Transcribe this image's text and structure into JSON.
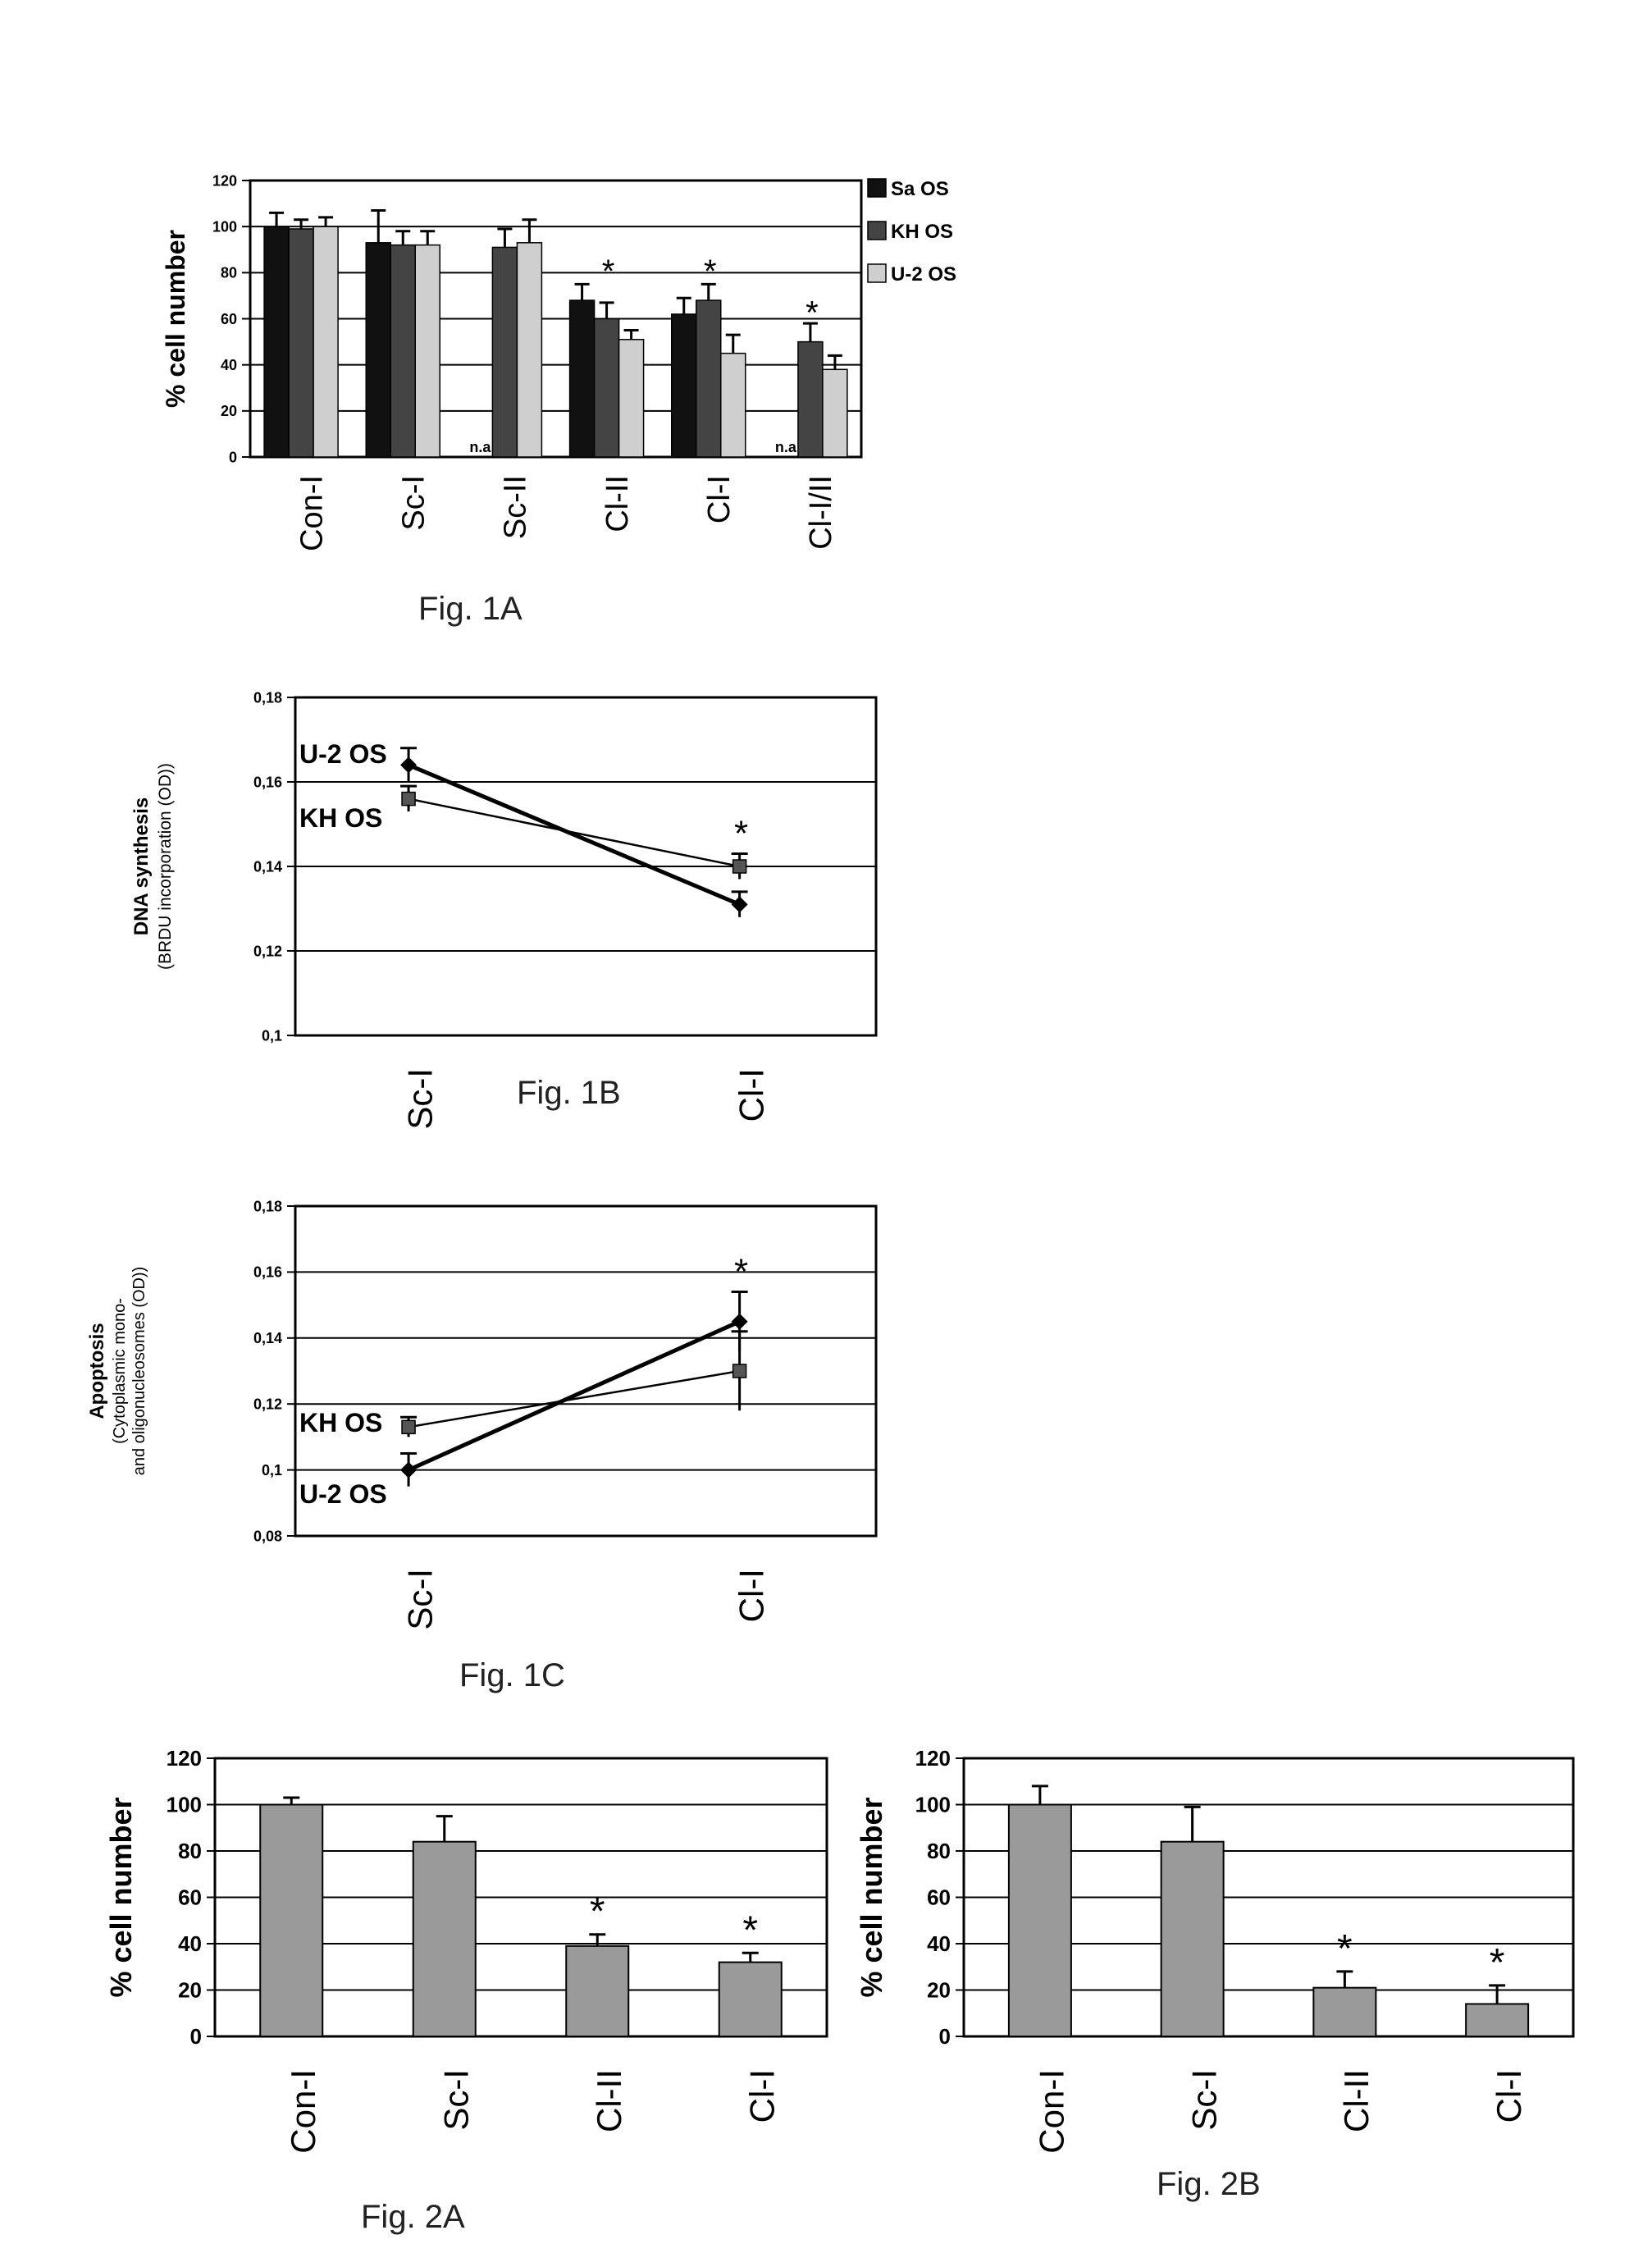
{
  "figures": {
    "fig1a": "Fig. 1A",
    "fig1b": "Fig. 1B",
    "fig1c": "Fig. 1C",
    "fig2a": "Fig. 2A",
    "fig2b": "Fig. 2B"
  },
  "colors": {
    "bar_dark": "#111111",
    "bar_mid": "#444444",
    "bar_light": "#cfcfcf",
    "bar_gray": "#9a9a9a",
    "grid": "#000000"
  },
  "chart_data": [
    {
      "id": "fig1a",
      "type": "bar",
      "categories": [
        "Con-I",
        "Sc-I",
        "Sc-II",
        "Cl-II",
        "Cl-I",
        "Cl-I/II"
      ],
      "series": [
        {
          "name": "Sa OS",
          "values": [
            100,
            93,
            null,
            68,
            62,
            null
          ],
          "errors": [
            6,
            14,
            null,
            7,
            7,
            null
          ]
        },
        {
          "name": "KH OS",
          "values": [
            99,
            92,
            91,
            60,
            68,
            50
          ],
          "errors": [
            4,
            6,
            8,
            7,
            7,
            8
          ]
        },
        {
          "name": "U-2 OS",
          "values": [
            100,
            92,
            93,
            51,
            45,
            38
          ],
          "errors": [
            4,
            6,
            10,
            4,
            8,
            6
          ]
        }
      ],
      "na_label": "n.a",
      "ylabel": "% cell number",
      "ylim": [
        0,
        120
      ],
      "yticks": [
        "0",
        "20",
        "40",
        "60",
        "80",
        "100",
        "120"
      ],
      "asterisks": [
        "",
        "",
        "",
        "*",
        "*",
        "*"
      ],
      "legend_position": "right"
    },
    {
      "id": "fig1b",
      "type": "line",
      "categories": [
        "Sc-I",
        "Cl-I"
      ],
      "series": [
        {
          "name": "U-2 OS",
          "values": [
            0.164,
            0.131
          ],
          "errors": [
            0.004,
            0.003
          ]
        },
        {
          "name": "KH OS",
          "values": [
            0.156,
            0.14
          ],
          "errors": [
            0.003,
            0.003
          ]
        }
      ],
      "ylabel": "DNA synthesis",
      "ylabel2": "(BRDU incorporation (OD))",
      "ylim": [
        0.1,
        0.18
      ],
      "yticks": [
        "0,1",
        "0,12",
        "0,14",
        "0,16",
        "0,18"
      ],
      "asterisk_at": "Cl-I"
    },
    {
      "id": "fig1c",
      "type": "line",
      "categories": [
        "Sc-I",
        "Cl-I"
      ],
      "series": [
        {
          "name": "KH OS",
          "values": [
            0.113,
            0.13
          ],
          "errors": [
            0.003,
            0.012
          ]
        },
        {
          "name": "U-2 OS",
          "values": [
            0.1,
            0.145
          ],
          "errors": [
            0.005,
            0.009
          ]
        }
      ],
      "ylabel": "Apoptosis",
      "ylabel2": "(Cytoplasmic mono-",
      "ylabel3": "and oligonucleosomes (OD))",
      "ylim": [
        0.08,
        0.18
      ],
      "yticks": [
        "0,08",
        "0,1",
        "0,12",
        "0,14",
        "0,16",
        "0,18"
      ],
      "asterisk_at": "Cl-I"
    },
    {
      "id": "fig2a",
      "type": "bar",
      "categories": [
        "Con-I",
        "Sc-I",
        "Cl-II",
        "Cl-I"
      ],
      "values": [
        100,
        84,
        39,
        32
      ],
      "errors": [
        3,
        11,
        5,
        4
      ],
      "asterisks": [
        "",
        "",
        "*",
        "*"
      ],
      "ylabel": "% cell number",
      "ylim": [
        0,
        120
      ],
      "yticks": [
        "0",
        "20",
        "40",
        "60",
        "80",
        "100",
        "120"
      ]
    },
    {
      "id": "fig2b",
      "type": "bar",
      "categories": [
        "Con-I",
        "Sc-I",
        "Cl-II",
        "Cl-I"
      ],
      "values": [
        100,
        84,
        21,
        14
      ],
      "errors": [
        8,
        15,
        7,
        8
      ],
      "asterisks": [
        "",
        "",
        "*",
        "*"
      ],
      "ylabel": "% cell number",
      "ylim": [
        0,
        120
      ],
      "yticks": [
        "0",
        "20",
        "40",
        "60",
        "80",
        "100",
        "120"
      ]
    }
  ]
}
